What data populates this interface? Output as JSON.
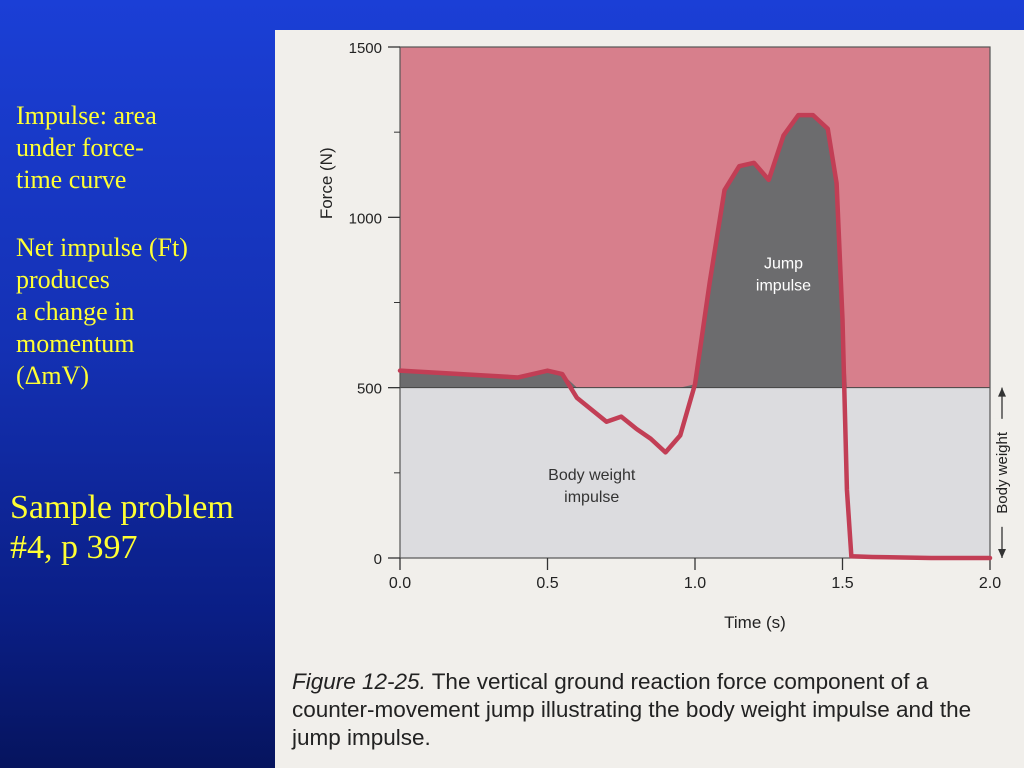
{
  "slide": {
    "text_lines_1": [
      "Impulse:  area",
      "under force-",
      "time curve"
    ],
    "text_lines_2": [
      "Net impulse (Ft)",
      "produces",
      "a change in",
      "momentum",
      "(ΔmV)"
    ],
    "sample_lines": [
      "Sample problem",
      "#4, p 397"
    ]
  },
  "figure": {
    "caption_ref": "Figure 12-25.",
    "caption_text": "The vertical ground reaction force component of a counter-movement jump illustrating the body weight impulse and the jump impulse.",
    "colors": {
      "impulse_bg": "#d77f8c",
      "body_weight_fill": "#dcdcdf",
      "jump_fill": "#6c6c6e",
      "curve": "#c23e55"
    }
  },
  "chart_data": {
    "type": "line",
    "xlabel": "Time (s)",
    "ylabel": "Force (N)",
    "xlim": [
      0,
      2.0
    ],
    "ylim": [
      0,
      1500
    ],
    "x_ticks": [
      0.0,
      0.5,
      1.0,
      1.5,
      2.0
    ],
    "x_tick_labels": [
      "0.0",
      "0.5",
      "1.0",
      "1.5",
      "2.0"
    ],
    "y_ticks": [
      0,
      500,
      1000,
      1500
    ],
    "y_tick_labels": [
      "0",
      "500",
      "1000",
      "1500"
    ],
    "body_weight": 500,
    "body_weight_label": "Body weight",
    "regions": [
      {
        "label_lines": [
          "Jump",
          "impulse"
        ],
        "x": 1.3,
        "y": 820
      },
      {
        "label_lines": [
          "Body weight",
          "impulse"
        ],
        "x": 0.65,
        "y": 200
      }
    ],
    "series": [
      {
        "x": [
          0.0,
          0.2,
          0.4,
          0.5,
          0.55,
          0.6,
          0.7,
          0.75,
          0.8,
          0.85,
          0.9,
          0.95,
          1.0,
          1.05,
          1.1,
          1.15,
          1.2,
          1.25,
          1.3,
          1.35,
          1.4,
          1.45,
          1.48,
          1.5,
          1.515,
          1.53,
          1.6,
          1.8,
          2.0
        ],
        "y": [
          550,
          540,
          530,
          550,
          540,
          470,
          400,
          415,
          380,
          350,
          310,
          360,
          510,
          810,
          1080,
          1150,
          1160,
          1110,
          1240,
          1300,
          1300,
          1260,
          1100,
          700,
          200,
          5,
          3,
          0,
          0
        ]
      }
    ]
  }
}
